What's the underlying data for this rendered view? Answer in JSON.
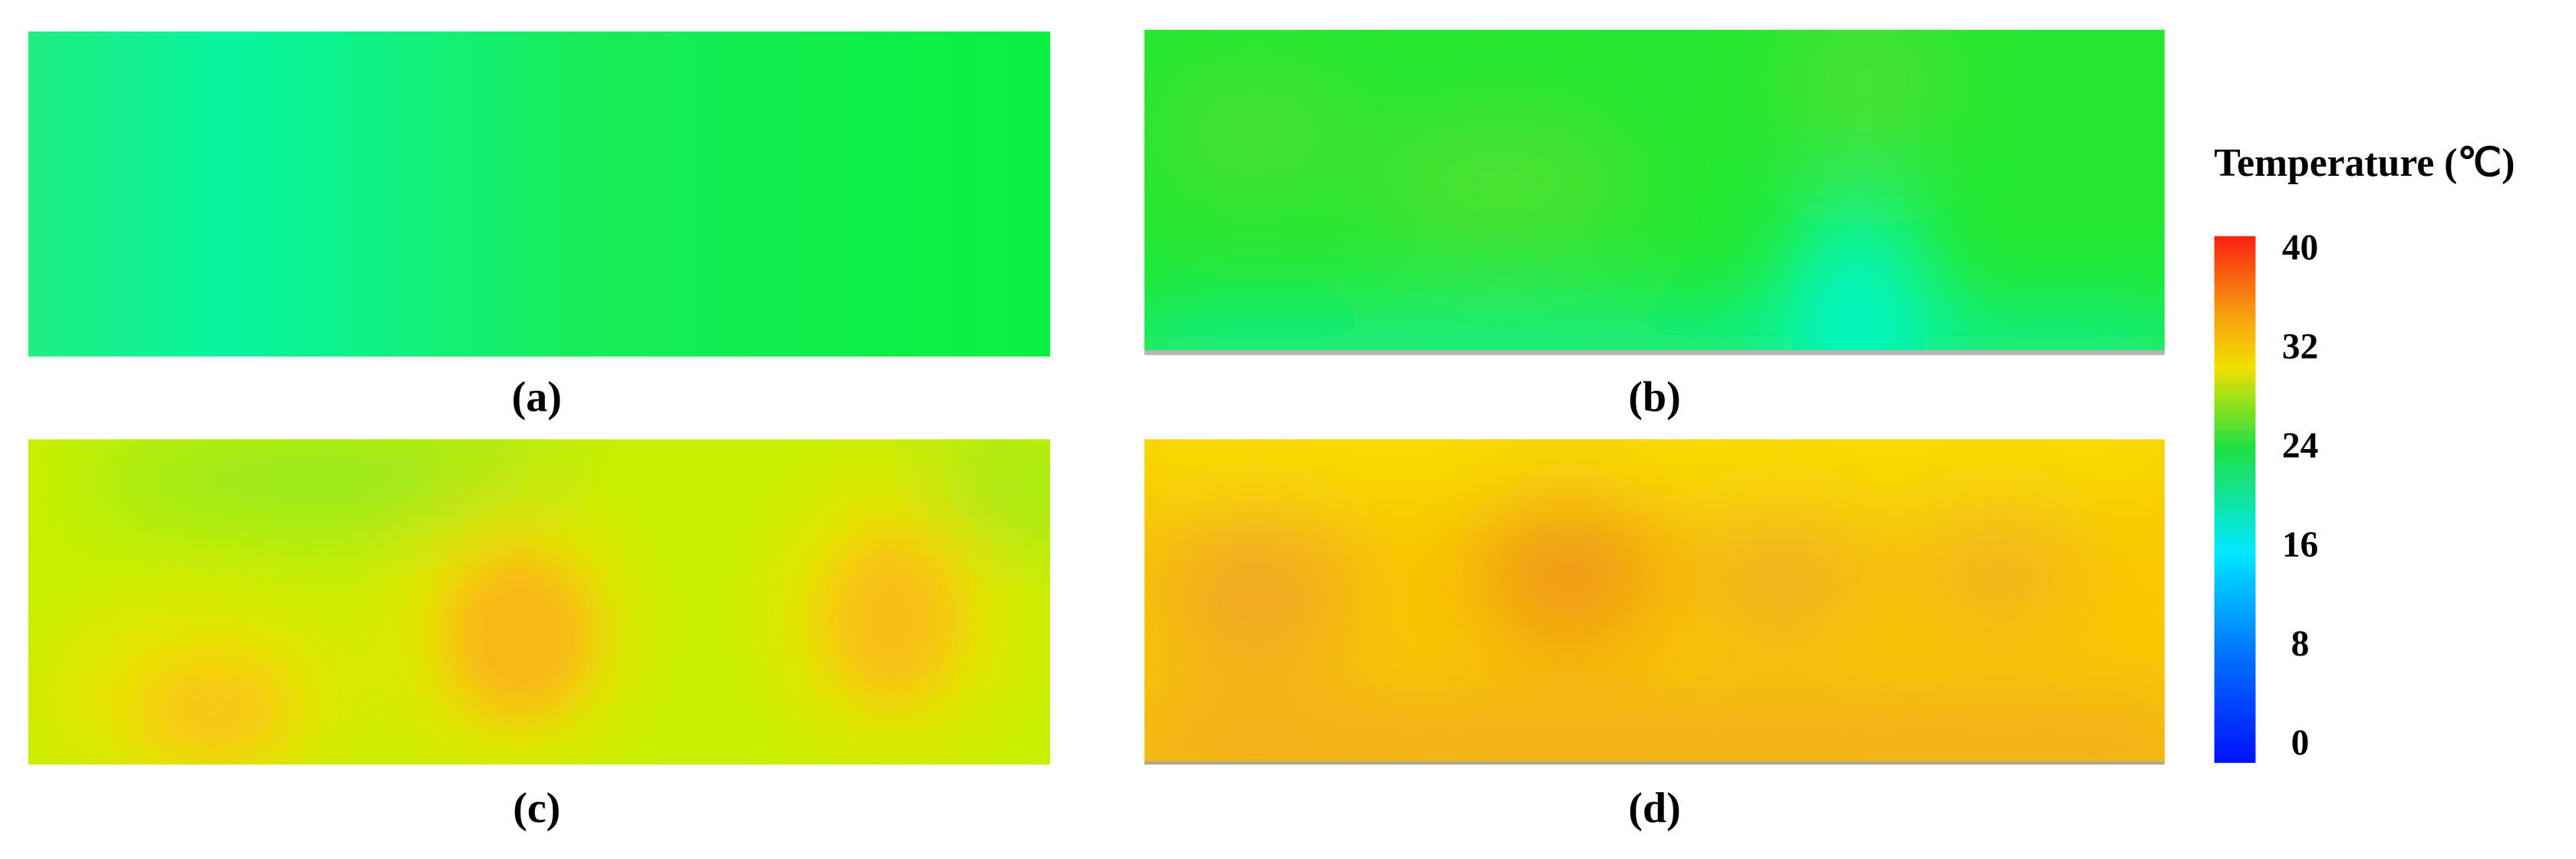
{
  "colorbar": {
    "title": "Temperature (℃)",
    "range": [
      0,
      40
    ],
    "ticks": [
      0,
      8,
      16,
      24,
      32,
      40
    ]
  },
  "panels": [
    {
      "label": "(a)"
    },
    {
      "label": "(b)"
    },
    {
      "label": "(c)"
    },
    {
      "label": "(d)"
    }
  ]
}
